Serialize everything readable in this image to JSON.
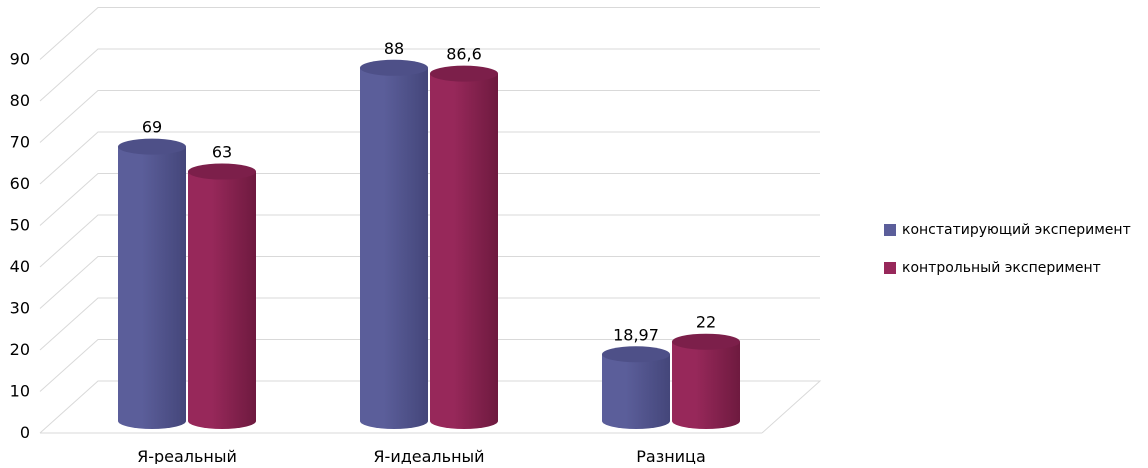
{
  "chart_data": {
    "type": "bar",
    "categories": [
      "Я-реальный",
      "Я-идеальный",
      "Разница"
    ],
    "series": [
      {
        "name": "констатирующий эксперимент",
        "values": [
          69,
          88,
          18.97
        ],
        "labels": [
          "69",
          "88",
          "18,97"
        ],
        "color": "#5B5E9A"
      },
      {
        "name": "контрольный эксперимент",
        "values": [
          63,
          86.6,
          22
        ],
        "labels": [
          "63",
          "86,6",
          "22"
        ],
        "color": "#97285A"
      }
    ],
    "ylim": [
      0,
      90
    ],
    "yticks": [
      "0",
      "10",
      "20",
      "30",
      "40",
      "50",
      "60",
      "70",
      "80",
      "90"
    ],
    "grid": true,
    "legend_position": "right",
    "bar_shape": "cylinder-3d",
    "colors": {
      "series1_dark": "#44467A",
      "series1_top": "#4E5088",
      "series2_dark": "#6E1A3F",
      "series2_top": "#7C1F4A",
      "gridline": "#D9D9D9"
    }
  }
}
